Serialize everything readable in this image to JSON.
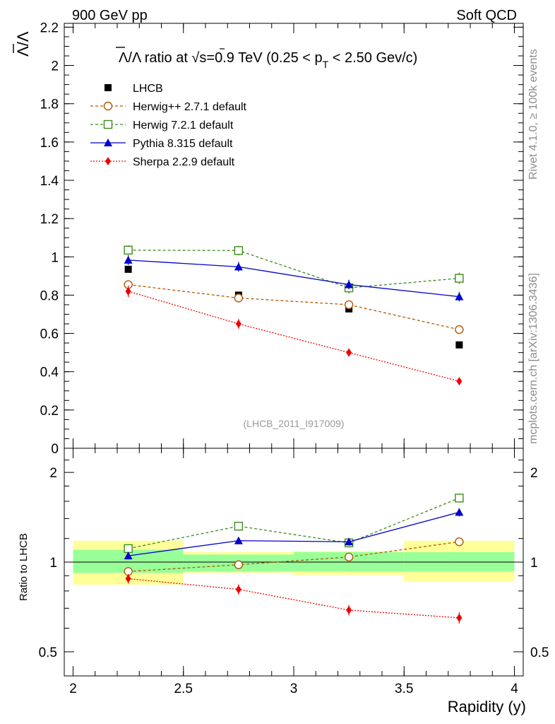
{
  "header": {
    "left": "900 GeV pp",
    "right": "Soft QCD"
  },
  "side": {
    "top": "Rivet 4.1.0, ≥ 100k events",
    "bottom": "mcplots.cern.ch [arXiv:1306.3436]"
  },
  "main": {
    "title_prefix": "Λ/Λ ratio at √s=0.9 TeV (0.25 < p",
    "title_sub": "T",
    "title_suffix": " < 2.50 Gev/c)",
    "ylabel": "Λ/Λ",
    "watermark": "(LHCB_2011_I917009)"
  },
  "ratio": {
    "ylabel": "Ratio to LHCB"
  },
  "xaxis": {
    "label": "Rapidity (y)"
  },
  "legend": [
    {
      "label": "LHCB"
    },
    {
      "label": "Herwig++ 2.7.1 default"
    },
    {
      "label": "Herwig 7.2.1 default"
    },
    {
      "label": "Pythia 8.315 default"
    },
    {
      "label": "Sherpa 2.2.9 default"
    }
  ],
  "chart_data": {
    "type": "scatter",
    "x": [
      2.25,
      2.75,
      3.25,
      3.75
    ],
    "xlim": [
      1.96,
      4.04
    ],
    "xticks": [
      "2",
      "2.5",
      "3",
      "3.5",
      "4"
    ],
    "main_ylim": [
      0,
      2.22
    ],
    "main_yticks": [
      "0",
      "0.2",
      "0.4",
      "0.6",
      "0.8",
      "1",
      "1.2",
      "1.4",
      "1.6",
      "1.8",
      "2",
      "2.2"
    ],
    "ratio_ylim": [
      0.415,
      2.41
    ],
    "ratio_yticks": [
      "0.5",
      "1",
      "2"
    ],
    "colors": {
      "lhcb": "#000000",
      "herwigpp": "#b35900",
      "herwig7": "#3c8c1c",
      "pythia": "#0000cc",
      "sherpa": "#ee0000",
      "band_inner": "#99ff99",
      "band_outer": "#ffff99"
    },
    "data": {
      "name": "LHCB",
      "bins": [
        [
          2.0,
          2.5
        ],
        [
          2.5,
          3.0
        ],
        [
          3.0,
          3.5
        ],
        [
          3.5,
          4.0
        ]
      ],
      "values": [
        0.935,
        0.8,
        0.728,
        0.54
      ],
      "band_inner": [
        [
          0.92,
          1.1
        ],
        [
          0.93,
          1.06
        ],
        [
          0.93,
          1.08
        ],
        [
          0.93,
          1.08
        ]
      ],
      "band_outer": [
        [
          0.84,
          1.18
        ],
        [
          0.92,
          1.08
        ],
        [
          0.905,
          1.09
        ],
        [
          0.86,
          1.18
        ]
      ]
    },
    "series": [
      {
        "name": "Herwig++ 2.7.1 default",
        "key": "herwigpp",
        "marker": "circle-open",
        "dash": "4,3",
        "values": [
          0.855,
          0.785,
          0.75,
          0.62
        ],
        "errors": [
          0.02,
          0.02,
          0.02,
          0.02
        ],
        "ratio": [
          0.93,
          0.98,
          1.04,
          1.17
        ]
      },
      {
        "name": "Herwig 7.2.1 default",
        "key": "herwig7",
        "marker": "square-open",
        "dash": "4,3",
        "values": [
          1.035,
          1.033,
          0.838,
          0.888
        ],
        "errors": [
          0.025,
          0.025,
          0.03,
          0.03
        ],
        "ratio": [
          1.11,
          1.32,
          1.16,
          1.64
        ]
      },
      {
        "name": "Pythia 8.315 default",
        "key": "pythia",
        "marker": "triangle",
        "dash": "",
        "values": [
          0.983,
          0.948,
          0.855,
          0.792
        ],
        "errors": [
          0.025,
          0.025,
          0.025,
          0.025
        ],
        "ratio": [
          1.05,
          1.18,
          1.17,
          1.47
        ]
      },
      {
        "name": "Sherpa 2.2.9 default",
        "key": "sherpa",
        "marker": "diamond",
        "dash": "2,2",
        "values": [
          0.82,
          0.65,
          0.5,
          0.35
        ],
        "errors": [
          0.03,
          0.025,
          0.02,
          0.015
        ],
        "ratio": [
          0.88,
          0.81,
          0.69,
          0.65
        ]
      }
    ]
  }
}
